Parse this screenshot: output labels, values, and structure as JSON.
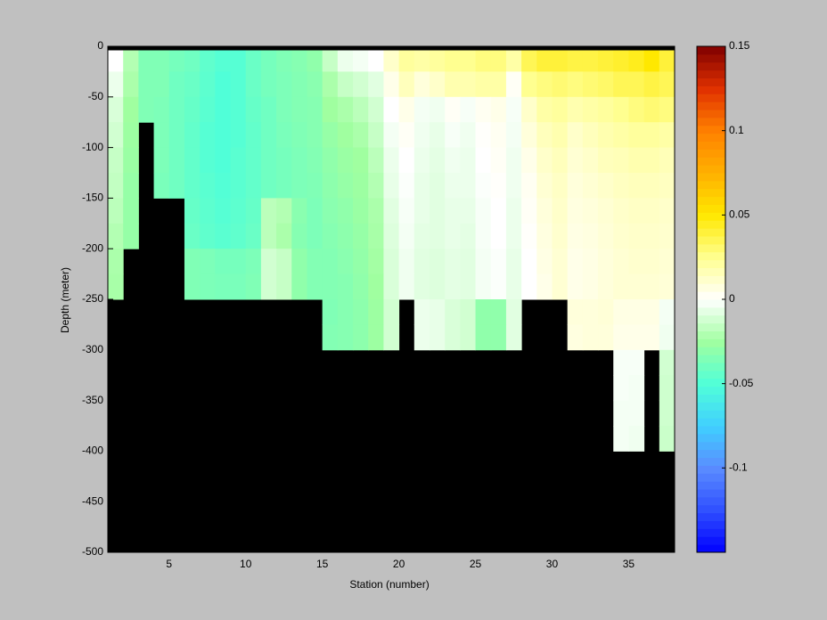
{
  "chart_data": {
    "type": "heatmap",
    "xlabel": "Station (number)",
    "ylabel": "Depth (meter)",
    "xlim": [
      1,
      38
    ],
    "ylim": [
      -500,
      0
    ],
    "xticks": [
      5,
      10,
      15,
      20,
      25,
      30,
      35
    ],
    "yticks": [
      0,
      -50,
      -100,
      -150,
      -200,
      -250,
      -300,
      -350,
      -400,
      -450,
      -500
    ],
    "clim": [
      -0.15,
      0.15
    ],
    "cticks": [
      -0.1,
      -0.05,
      0,
      0.05,
      0.1,
      0.15
    ],
    "colormap": [
      "#0000ff",
      "#3050ff",
      "#5a8cff",
      "#40d0ff",
      "#50ffd8",
      "#a0ffa0",
      "#ffffff",
      "#ffff90",
      "#ffe800",
      "#ffb000",
      "#ff8000",
      "#e03000",
      "#800000"
    ],
    "nodata_color": "#000000",
    "x": [
      1,
      2,
      3,
      4,
      5,
      6,
      7,
      8,
      9,
      10,
      11,
      12,
      13,
      14,
      15,
      16,
      17,
      18,
      19,
      20,
      21,
      22,
      23,
      24,
      25,
      26,
      27,
      28,
      29,
      30,
      31,
      32,
      33,
      34,
      35,
      36,
      37,
      38
    ],
    "y": [
      0,
      -25,
      -50,
      -75,
      -100,
      -125,
      -150,
      -175,
      -200,
      -225,
      -250,
      -275,
      -300,
      -325,
      -350,
      -375,
      -400
    ],
    "z": [
      [
        0.0,
        -0.02,
        -0.035,
        -0.035,
        -0.038,
        -0.04,
        -0.045,
        -0.048,
        -0.048,
        -0.042,
        -0.038,
        -0.035,
        -0.033,
        -0.03,
        -0.015,
        -0.005,
        -0.003,
        0.0,
        0.012,
        0.022,
        0.02,
        0.022,
        0.025,
        0.025,
        0.028,
        0.028,
        0.02,
        0.035,
        0.04,
        0.04,
        0.038,
        0.038,
        0.04,
        0.042,
        0.045,
        0.05,
        0.04
      ],
      [
        -0.005,
        -0.022,
        -0.035,
        -0.035,
        -0.04,
        -0.042,
        -0.046,
        -0.05,
        -0.048,
        -0.042,
        -0.038,
        -0.036,
        -0.034,
        -0.032,
        -0.022,
        -0.015,
        -0.012,
        -0.008,
        0.005,
        0.015,
        0.008,
        0.012,
        0.018,
        0.018,
        0.02,
        0.02,
        0.002,
        0.025,
        0.028,
        0.03,
        0.028,
        0.03,
        0.032,
        0.035,
        0.035,
        0.038,
        0.035
      ],
      [
        -0.01,
        -0.025,
        -0.035,
        -0.036,
        -0.04,
        -0.043,
        -0.047,
        -0.05,
        -0.048,
        -0.043,
        -0.04,
        -0.036,
        -0.034,
        -0.033,
        -0.025,
        -0.022,
        -0.018,
        -0.012,
        0.0,
        0.005,
        -0.003,
        -0.004,
        0.002,
        -0.002,
        0.003,
        0.005,
        -0.002,
        0.012,
        0.02,
        0.022,
        0.018,
        0.02,
        0.022,
        0.025,
        0.028,
        0.03,
        0.028
      ],
      [
        -0.012,
        -0.026,
        null,
        -0.036,
        -0.04,
        -0.044,
        -0.048,
        -0.05,
        -0.048,
        -0.044,
        -0.04,
        -0.037,
        -0.035,
        -0.033,
        -0.028,
        -0.025,
        -0.022,
        -0.015,
        -0.003,
        0.002,
        -0.004,
        -0.006,
        -0.002,
        -0.004,
        0.001,
        0.003,
        -0.003,
        0.008,
        0.015,
        0.018,
        0.012,
        0.015,
        0.018,
        0.02,
        0.022,
        0.022,
        0.02
      ],
      [
        -0.015,
        -0.027,
        null,
        -0.036,
        -0.04,
        -0.044,
        -0.048,
        -0.05,
        -0.047,
        -0.044,
        -0.04,
        -0.038,
        -0.036,
        -0.034,
        -0.03,
        -0.027,
        -0.025,
        -0.018,
        -0.005,
        0.0,
        -0.005,
        -0.007,
        -0.004,
        -0.005,
        0.0,
        0.002,
        -0.004,
        0.005,
        0.012,
        0.015,
        0.01,
        0.012,
        0.015,
        0.016,
        0.018,
        0.018,
        0.016
      ],
      [
        -0.016,
        -0.028,
        null,
        -0.037,
        -0.04,
        -0.044,
        -0.047,
        -0.049,
        -0.047,
        -0.044,
        -0.04,
        -0.038,
        -0.036,
        -0.035,
        -0.031,
        -0.028,
        -0.026,
        -0.02,
        -0.006,
        -0.001,
        -0.006,
        -0.008,
        -0.005,
        -0.005,
        -0.001,
        0.001,
        -0.004,
        0.003,
        0.01,
        0.013,
        0.008,
        0.01,
        0.012,
        0.014,
        0.015,
        0.015,
        0.014
      ],
      [
        -0.018,
        -0.028,
        null,
        null,
        null,
        -0.043,
        -0.046,
        -0.048,
        -0.046,
        -0.043,
        -0.018,
        -0.02,
        -0.032,
        -0.036,
        -0.032,
        -0.03,
        -0.027,
        -0.022,
        -0.008,
        -0.002,
        -0.006,
        -0.008,
        -0.006,
        -0.006,
        -0.002,
        0.0,
        -0.005,
        0.002,
        0.008,
        0.012,
        0.007,
        0.008,
        0.01,
        0.012,
        0.013,
        0.013,
        0.012
      ],
      [
        -0.02,
        -0.028,
        null,
        null,
        null,
        -0.042,
        -0.045,
        -0.047,
        -0.045,
        -0.042,
        -0.018,
        -0.022,
        -0.033,
        -0.036,
        -0.033,
        -0.031,
        -0.028,
        -0.023,
        -0.009,
        -0.003,
        -0.007,
        -0.008,
        -0.006,
        -0.007,
        -0.002,
        0.0,
        -0.005,
        0.001,
        0.007,
        0.011,
        0.006,
        0.007,
        0.009,
        0.011,
        0.012,
        0.012,
        0.011
      ],
      [
        -0.022,
        null,
        null,
        null,
        null,
        -0.035,
        -0.036,
        -0.038,
        -0.038,
        -0.036,
        -0.012,
        -0.015,
        -0.03,
        -0.034,
        -0.034,
        -0.032,
        -0.029,
        -0.024,
        -0.01,
        -0.004,
        -0.008,
        -0.009,
        -0.007,
        -0.008,
        -0.003,
        -0.001,
        -0.006,
        0.0,
        0.006,
        0.01,
        0.005,
        0.006,
        0.008,
        0.01,
        0.011,
        0.011,
        0.01
      ],
      [
        -0.023,
        null,
        null,
        null,
        null,
        -0.035,
        -0.036,
        -0.037,
        -0.037,
        -0.035,
        -0.012,
        -0.015,
        -0.03,
        -0.034,
        -0.034,
        -0.033,
        -0.03,
        -0.025,
        -0.01,
        -0.004,
        -0.008,
        -0.009,
        -0.007,
        -0.008,
        -0.003,
        -0.001,
        -0.006,
        0.0,
        0.005,
        0.01,
        0.005,
        0.006,
        0.008,
        0.01,
        0.01,
        0.01,
        0.009
      ],
      [
        null,
        null,
        null,
        null,
        null,
        null,
        null,
        null,
        null,
        null,
        null,
        null,
        null,
        null,
        -0.035,
        -0.033,
        -0.031,
        -0.026,
        -0.012,
        null,
        -0.005,
        -0.006,
        -0.01,
        -0.012,
        -0.03,
        -0.03,
        -0.008,
        null,
        null,
        null,
        0.008,
        0.008,
        0.009,
        0.006,
        0.006,
        0.006,
        -0.003
      ],
      [
        null,
        null,
        null,
        null,
        null,
        null,
        null,
        null,
        null,
        null,
        null,
        null,
        null,
        null,
        -0.034,
        -0.033,
        -0.031,
        -0.026,
        -0.012,
        null,
        -0.005,
        -0.006,
        -0.01,
        -0.012,
        -0.03,
        -0.03,
        -0.008,
        null,
        null,
        null,
        0.007,
        0.008,
        0.008,
        0.005,
        0.005,
        0.005,
        -0.004
      ],
      [
        null,
        null,
        null,
        null,
        null,
        null,
        null,
        null,
        null,
        null,
        null,
        null,
        null,
        null,
        null,
        null,
        null,
        null,
        null,
        null,
        null,
        null,
        null,
        null,
        null,
        null,
        null,
        null,
        null,
        null,
        null,
        null,
        null,
        -0.002,
        -0.002,
        null,
        -0.012
      ],
      [
        null,
        null,
        null,
        null,
        null,
        null,
        null,
        null,
        null,
        null,
        null,
        null,
        null,
        null,
        null,
        null,
        null,
        null,
        null,
        null,
        null,
        null,
        null,
        null,
        null,
        null,
        null,
        null,
        null,
        null,
        null,
        null,
        null,
        -0.002,
        -0.003,
        null,
        -0.013
      ],
      [
        null,
        null,
        null,
        null,
        null,
        null,
        null,
        null,
        null,
        null,
        null,
        null,
        null,
        null,
        null,
        null,
        null,
        null,
        null,
        null,
        null,
        null,
        null,
        null,
        null,
        null,
        null,
        null,
        null,
        null,
        null,
        null,
        null,
        -0.003,
        -0.003,
        null,
        -0.013
      ],
      [
        null,
        null,
        null,
        null,
        null,
        null,
        null,
        null,
        null,
        null,
        null,
        null,
        null,
        null,
        null,
        null,
        null,
        null,
        null,
        null,
        null,
        null,
        null,
        null,
        null,
        null,
        null,
        null,
        null,
        null,
        null,
        null,
        null,
        -0.003,
        -0.004,
        null,
        -0.014
      ]
    ]
  }
}
